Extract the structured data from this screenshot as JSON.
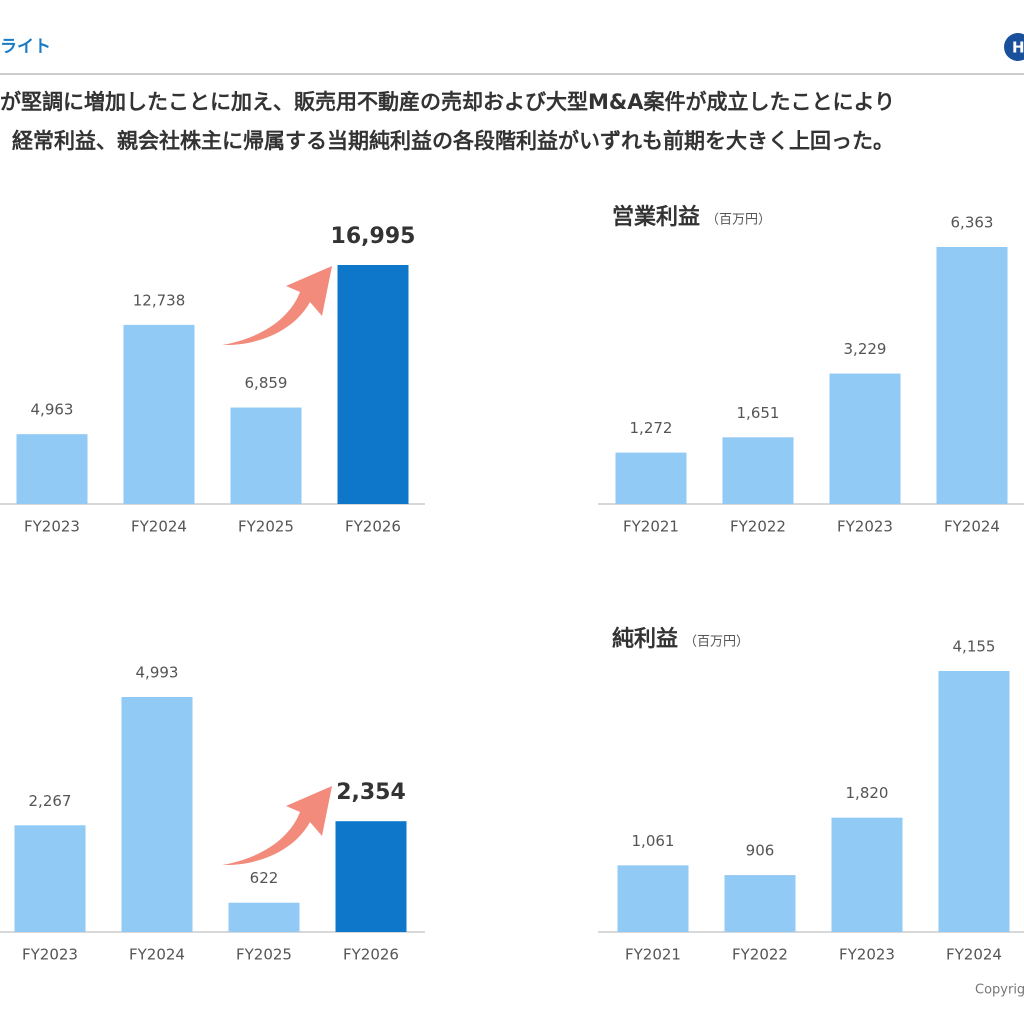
{
  "header": {
    "title": "ライト",
    "logo": "H"
  },
  "body": {
    "lines": [
      "が堅調に増加したことに加え、販売用不動産の売却および大型M&A案件が成立したことにより",
      "経常利益、親会社株主に帰属する当期純利益の各段階利益がいずれも前期を大きく上回った。"
    ]
  },
  "footer": {
    "copyright": "Copyrig"
  },
  "chart_data": [
    {
      "type": "bar",
      "categories": [
        "FY2023",
        "FY2024",
        "FY2025",
        "FY2026"
      ],
      "values": [
        4963,
        12738,
        6859,
        16995
      ],
      "value_labels": [
        "4,963",
        "12,738",
        "6,859",
        "16,995"
      ],
      "colors": [
        "#90caf5",
        "#90caf5",
        "#90caf5",
        "#0e77c9"
      ]
    },
    {
      "type": "bar",
      "title": "営業利益",
      "unit": "（百万円）",
      "categories": [
        "FY2021",
        "FY2022",
        "FY2023",
        "FY2024"
      ],
      "values": [
        1272,
        1651,
        3229,
        6363
      ],
      "value_labels": [
        "1,272",
        "1,651",
        "3,229",
        "6,363"
      ],
      "colors": [
        "#90caf5",
        "#90caf5",
        "#90caf5",
        "#90caf5"
      ]
    },
    {
      "type": "bar",
      "categories": [
        "FY2023",
        "FY2024",
        "FY2025",
        "FY2026"
      ],
      "values": [
        2267,
        4993,
        622,
        2354
      ],
      "value_labels": [
        "2,267",
        "4,993",
        "622",
        "2,354"
      ],
      "colors": [
        "#90caf5",
        "#90caf5",
        "#90caf5",
        "#0e77c9"
      ]
    },
    {
      "type": "bar",
      "title": "純利益",
      "unit": "（百万円）",
      "categories": [
        "FY2021",
        "FY2022",
        "FY2023",
        "FY2024"
      ],
      "values": [
        1061,
        906,
        1820,
        4155
      ],
      "value_labels": [
        "1,061",
        "906",
        "1,820",
        "4,155"
      ],
      "colors": [
        "#90caf5",
        "#90caf5",
        "#90caf5",
        "#90caf5"
      ]
    }
  ]
}
